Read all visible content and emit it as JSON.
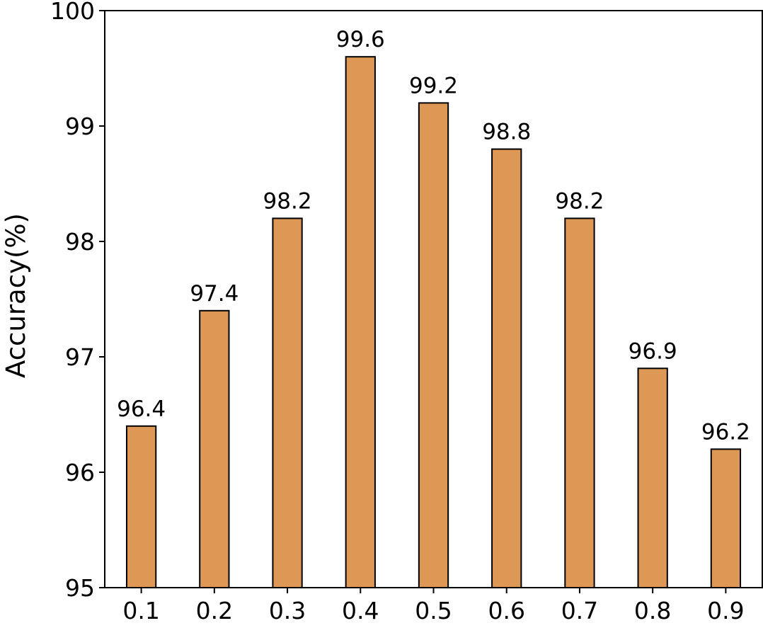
{
  "chart_data": {
    "type": "bar",
    "categories": [
      "0.1",
      "0.2",
      "0.3",
      "0.4",
      "0.5",
      "0.6",
      "0.7",
      "0.8",
      "0.9"
    ],
    "values": [
      96.4,
      97.4,
      98.2,
      99.6,
      99.2,
      98.8,
      98.2,
      96.9,
      96.2
    ],
    "data_labels": [
      "96.4",
      "97.4",
      "98.2",
      "99.6",
      "99.2",
      "98.8",
      "98.2",
      "96.9",
      "96.2"
    ],
    "title": "",
    "xlabel": "",
    "ylabel": "Accuracy(%)",
    "ylim": [
      95,
      100
    ],
    "yticks": [
      95,
      96,
      97,
      98,
      99,
      100
    ],
    "ytick_labels": [
      "95",
      "96",
      "97",
      "98",
      "99",
      "100"
    ],
    "grid": false,
    "legend": "none",
    "bar_color": "#dd9855",
    "edge_color": "#000000"
  }
}
